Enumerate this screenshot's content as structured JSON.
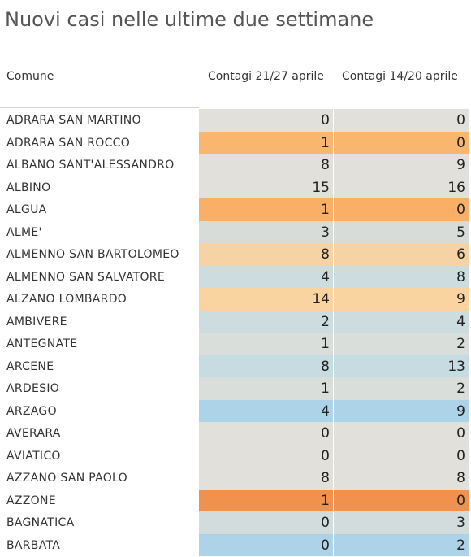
{
  "title": "Nuovi casi nelle ultime due settimane",
  "columns": {
    "comune": "Comune",
    "c1": "Contagi 21/27 aprile",
    "c2": "Contagi  14/20 aprile"
  },
  "colors": {
    "neutral": "#e2e0da",
    "light_orange": "#f5d3a5",
    "orange": "#f9b66e",
    "strong_orange": "#f0924e",
    "light_blue": "#cddcdf",
    "mid_blue": "#bfd7e2",
    "blue": "#acd3e7"
  },
  "chart_data": {
    "type": "table",
    "title": "Nuovi casi nelle ultime due settimane",
    "columns": [
      "Comune",
      "Contagi 21/27 aprile",
      "Contagi  14/20 aprile"
    ],
    "rows": [
      {
        "name": "ADRARA SAN MARTINO",
        "c1": "0",
        "c2": "0",
        "color": "#e2e0da"
      },
      {
        "name": "ADRARA SAN ROCCO",
        "c1": "1",
        "c2": "0",
        "color": "#f9b66e"
      },
      {
        "name": "ALBANO SANT'ALESSANDRO",
        "c1": "8",
        "c2": "9",
        "color": "#e2e0da"
      },
      {
        "name": "ALBINO",
        "c1": "15",
        "c2": "16",
        "color": "#e2e0da"
      },
      {
        "name": "ALGUA",
        "c1": "1",
        "c2": "0",
        "color": "#f9b066"
      },
      {
        "name": "ALME'",
        "c1": "3",
        "c2": "5",
        "color": "#d7dcd9"
      },
      {
        "name": "ALMENNO SAN BARTOLOMEO",
        "c1": "8",
        "c2": "6",
        "color": "#f5d3a5"
      },
      {
        "name": "ALMENNO SAN SALVATORE",
        "c1": "4",
        "c2": "8",
        "color": "#cddcdf"
      },
      {
        "name": "ALZANO LOMBARDO",
        "c1": "14",
        "c2": "9",
        "color": "#f9d4a0"
      },
      {
        "name": "AMBIVERE",
        "c1": "2",
        "c2": "4",
        "color": "#cddcdf"
      },
      {
        "name": "ANTEGNATE",
        "c1": "1",
        "c2": "2",
        "color": "#dadedb"
      },
      {
        "name": "ARCENE",
        "c1": "8",
        "c2": "13",
        "color": "#c6dbe2"
      },
      {
        "name": "ARDESIO",
        "c1": "1",
        "c2": "2",
        "color": "#dadedb"
      },
      {
        "name": "ARZAGO",
        "c1": "4",
        "c2": "9",
        "color": "#acd3e7"
      },
      {
        "name": "AVERARA",
        "c1": "0",
        "c2": "0",
        "color": "#e2e0da"
      },
      {
        "name": "AVIATICO",
        "c1": "0",
        "c2": "0",
        "color": "#e2e0da"
      },
      {
        "name": "AZZANO SAN PAOLO",
        "c1": "8",
        "c2": "8",
        "color": "#e2e0da"
      },
      {
        "name": "AZZONE",
        "c1": "1",
        "c2": "0",
        "color": "#f0924e"
      },
      {
        "name": "BAGNATICA",
        "c1": "0",
        "c2": "3",
        "color": "#d3dcdc"
      },
      {
        "name": "BARBATA",
        "c1": "0",
        "c2": "2",
        "color": "#acd3e7"
      }
    ]
  }
}
